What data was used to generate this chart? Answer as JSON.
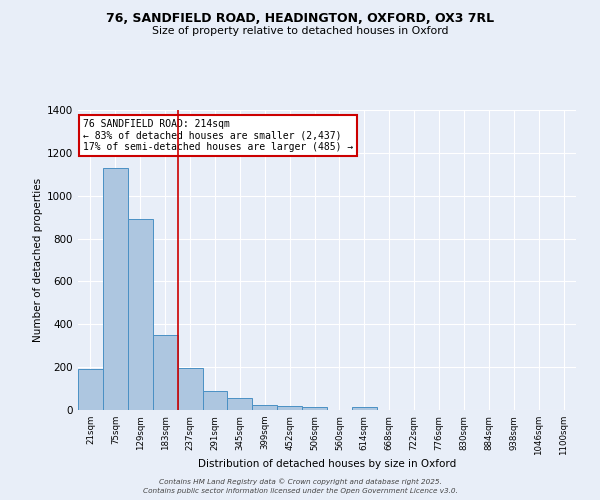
{
  "title_line1": "76, SANDFIELD ROAD, HEADINGTON, OXFORD, OX3 7RL",
  "title_line2": "Size of property relative to detached houses in Oxford",
  "xlabel": "Distribution of detached houses by size in Oxford",
  "ylabel": "Number of detached properties",
  "bin_labels": [
    "21sqm",
    "75sqm",
    "129sqm",
    "183sqm",
    "237sqm",
    "291sqm",
    "345sqm",
    "399sqm",
    "452sqm",
    "506sqm",
    "560sqm",
    "614sqm",
    "668sqm",
    "722sqm",
    "776sqm",
    "830sqm",
    "884sqm",
    "938sqm",
    "1046sqm",
    "1100sqm"
  ],
  "bar_values": [
    190,
    1130,
    890,
    350,
    195,
    90,
    55,
    25,
    20,
    12,
    0,
    12,
    0,
    0,
    0,
    0,
    0,
    0,
    0,
    0
  ],
  "bar_color": "#adc6e0",
  "bar_edge_color": "#4a90c4",
  "background_color": "#e8eef8",
  "grid_color": "#ffffff",
  "ylim": [
    0,
    1400
  ],
  "yticks": [
    0,
    200,
    400,
    600,
    800,
    1000,
    1200,
    1400
  ],
  "property_line_x": 3.5,
  "annotation_text": "76 SANDFIELD ROAD: 214sqm\n← 83% of detached houses are smaller (2,437)\n17% of semi-detached houses are larger (485) →",
  "annotation_box_color": "#ffffff",
  "annotation_box_edge": "#cc0000",
  "footer_line1": "Contains HM Land Registry data © Crown copyright and database right 2025.",
  "footer_line2": "Contains public sector information licensed under the Open Government Licence v3.0."
}
